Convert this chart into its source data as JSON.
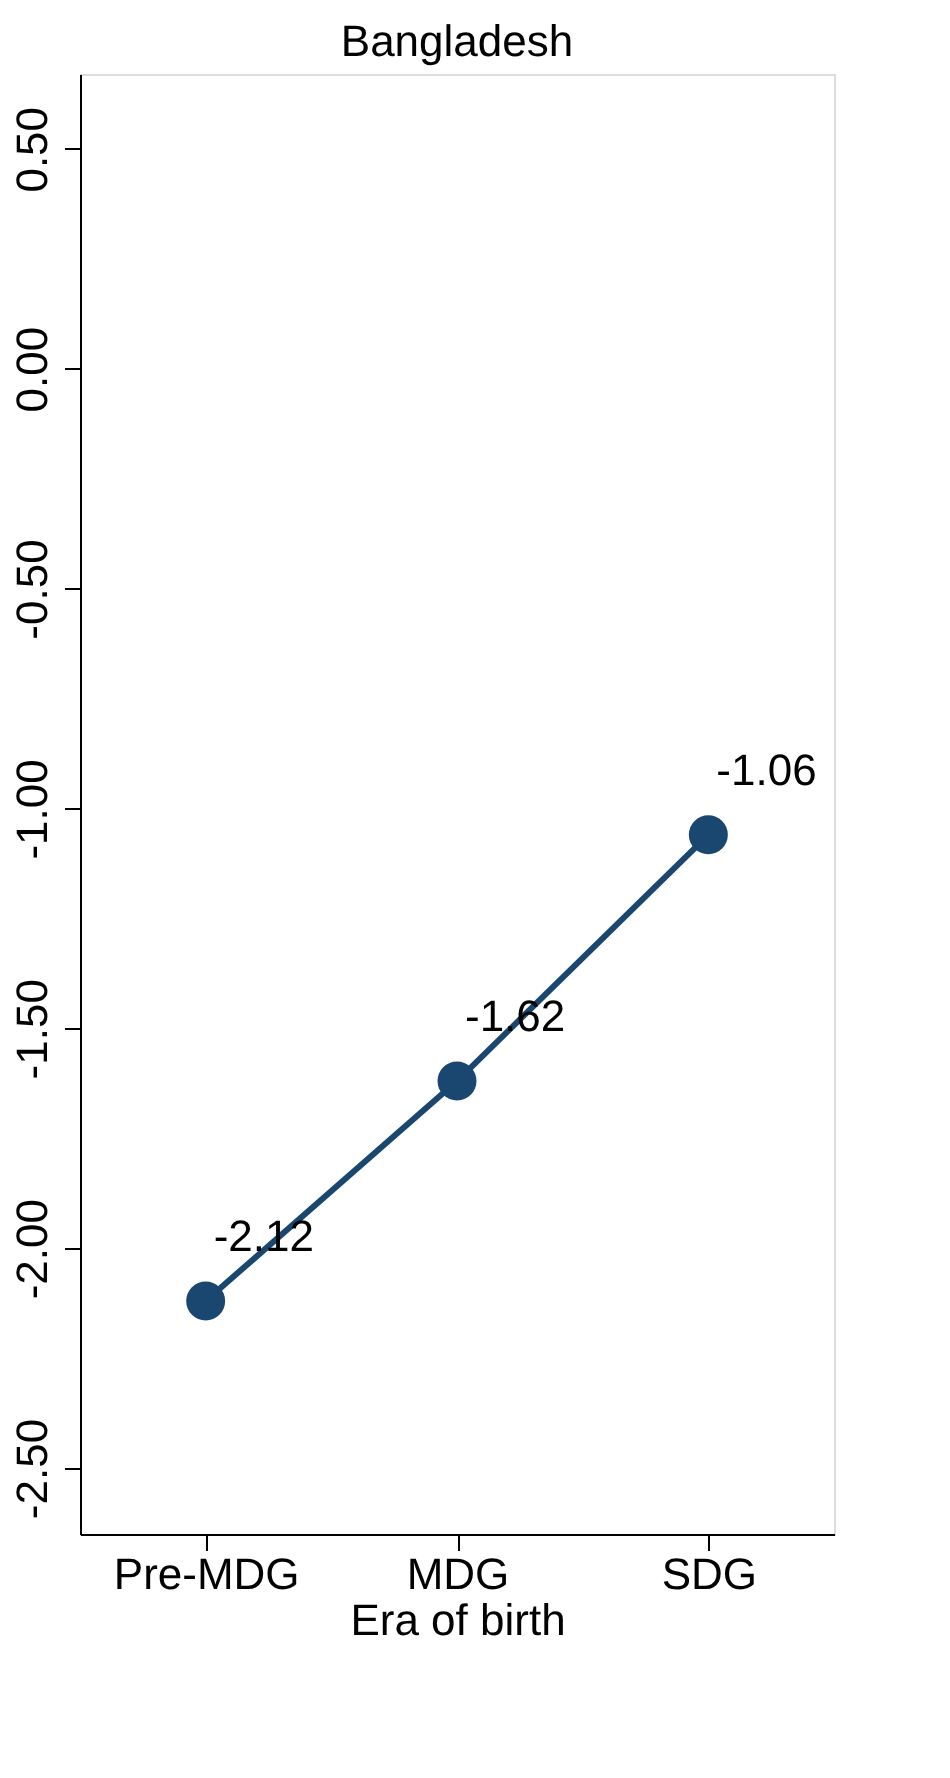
{
  "chart_data": {
    "type": "line",
    "title": "Bangladesh",
    "xlabel": "Era of birth",
    "categories": [
      "Pre-MDG",
      "MDG",
      "SDG"
    ],
    "series": [
      {
        "color": "#1a476f",
        "values": [
          -2.12,
          -1.62,
          -1.06
        ]
      }
    ],
    "ylim": [
      -2.65,
      0.67
    ],
    "yticks": [
      {
        "value": -2.5,
        "label": "-2.50"
      },
      {
        "value": -2.0,
        "label": "-2.00"
      },
      {
        "value": -1.5,
        "label": "-1.50"
      },
      {
        "value": -1.0,
        "label": "-1.00"
      },
      {
        "value": -0.5,
        "label": "-0.50"
      },
      {
        "value": 0.0,
        "label": "0.00"
      },
      {
        "value": 0.5,
        "label": "0.50"
      }
    ],
    "marker": "circle",
    "line_style": "solid",
    "grid": false,
    "legend": false,
    "data_labels": true
  }
}
